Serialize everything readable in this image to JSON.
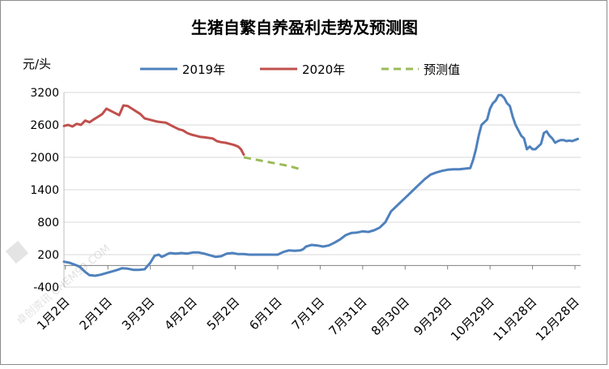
{
  "chart_data": {
    "type": "line",
    "title": "生猪自繁自养盈利走势及预测图",
    "ylabel": "元/头",
    "ylim": [
      -400,
      3200
    ],
    "yticks": [
      -400,
      200,
      800,
      1400,
      2000,
      2600,
      3200
    ],
    "ytick_labels": [
      "-400",
      "200",
      "800",
      "1400",
      "2000",
      "2600",
      "3200"
    ],
    "xlim_days": [
      1,
      366
    ],
    "xtick_labels": [
      "1月2日",
      "2月1日",
      "3月3日",
      "4月2日",
      "5月2日",
      "6月1日",
      "7月1日",
      "7月31日",
      "8月30日",
      "9月29日",
      "10月29日",
      "11月28日",
      "12月28日"
    ],
    "xtick_days": [
      2,
      32,
      62,
      92,
      122,
      152,
      182,
      212,
      242,
      272,
      302,
      332,
      362
    ],
    "gridlines": "horizontal",
    "legend_position": "top",
    "series": [
      {
        "name": "2019年",
        "color": "#4f81bd",
        "dash": "solid",
        "x": [
          1,
          5,
          9,
          12,
          16,
          19,
          23,
          27,
          31,
          35,
          39,
          42,
          46,
          50,
          54,
          58,
          62,
          65,
          68,
          70,
          72,
          74,
          76,
          80,
          84,
          88,
          92,
          96,
          100,
          104,
          108,
          112,
          116,
          120,
          124,
          128,
          132,
          136,
          140,
          144,
          148,
          152,
          156,
          160,
          164,
          168,
          170,
          172,
          176,
          180,
          184,
          188,
          192,
          196,
          200,
          204,
          208,
          212,
          216,
          220,
          224,
          228,
          232,
          236,
          240,
          244,
          248,
          252,
          256,
          260,
          264,
          268,
          272,
          276,
          280,
          284,
          288,
          290,
          292,
          294,
          296,
          298,
          300,
          302,
          304,
          306,
          308,
          310,
          312,
          314,
          316,
          318,
          320,
          322,
          324,
          326,
          328,
          330,
          332,
          334,
          336,
          338,
          340,
          342,
          344,
          346,
          348,
          350,
          352,
          354,
          356,
          358,
          360,
          362,
          364
        ],
        "y": [
          70,
          50,
          10,
          -20,
          -120,
          -180,
          -190,
          -170,
          -140,
          -110,
          -80,
          -50,
          -60,
          -80,
          -80,
          -70,
          50,
          180,
          200,
          160,
          180,
          210,
          230,
          220,
          230,
          220,
          240,
          240,
          220,
          190,
          160,
          170,
          220,
          230,
          210,
          210,
          200,
          200,
          200,
          200,
          200,
          200,
          250,
          280,
          270,
          280,
          300,
          350,
          380,
          370,
          350,
          370,
          420,
          480,
          560,
          600,
          610,
          630,
          620,
          650,
          700,
          800,
          1000,
          1100,
          1200,
          1300,
          1400,
          1500,
          1600,
          1680,
          1720,
          1750,
          1770,
          1780,
          1780,
          1790,
          1800,
          1950,
          2150,
          2400,
          2600,
          2650,
          2700,
          2900,
          3000,
          3050,
          3150,
          3150,
          3100,
          3000,
          2950,
          2750,
          2600,
          2500,
          2400,
          2350,
          2150,
          2200,
          2150,
          2150,
          2200,
          2250,
          2450,
          2480,
          2400,
          2350,
          2270,
          2300,
          2320,
          2320,
          2300,
          2310,
          2300,
          2320,
          2340
        ]
      },
      {
        "name": "2020年",
        "color": "#c0504d",
        "dash": "solid",
        "x": [
          1,
          4,
          7,
          10,
          13,
          16,
          19,
          22,
          25,
          28,
          31,
          34,
          37,
          40,
          43,
          46,
          49,
          52,
          55,
          58,
          61,
          64,
          67,
          70,
          73,
          76,
          79,
          82,
          85,
          88,
          91,
          94,
          97,
          100,
          103,
          106,
          109,
          112,
          115,
          118,
          121,
          124,
          126,
          128
        ],
        "y": [
          2580,
          2600,
          2570,
          2620,
          2600,
          2680,
          2650,
          2700,
          2750,
          2800,
          2900,
          2860,
          2820,
          2780,
          2960,
          2950,
          2900,
          2850,
          2800,
          2720,
          2700,
          2680,
          2660,
          2650,
          2640,
          2600,
          2560,
          2520,
          2500,
          2450,
          2420,
          2400,
          2380,
          2370,
          2360,
          2350,
          2300,
          2280,
          2270,
          2250,
          2230,
          2200,
          2150,
          2050
        ]
      },
      {
        "name": "预测值",
        "color": "#9bbb59",
        "dash": "dashed",
        "x": [
          128,
          132,
          136,
          140,
          144,
          148,
          152,
          156,
          160,
          164,
          168
        ],
        "y": [
          2000,
          1980,
          1960,
          1940,
          1920,
          1900,
          1880,
          1860,
          1840,
          1810,
          1780
        ]
      }
    ]
  },
  "watermark": {
    "text": "卓创资讯 CHEM99.COM"
  }
}
